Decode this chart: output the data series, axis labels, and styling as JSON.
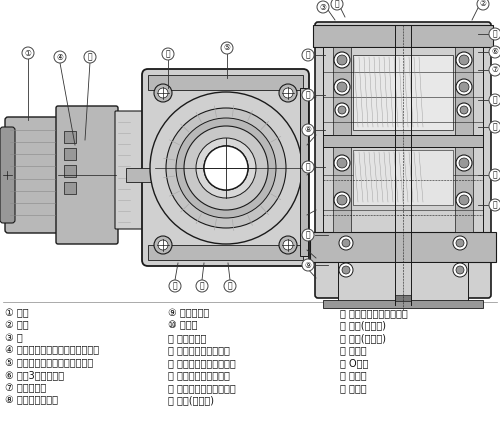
{
  "bg_color": "#ffffff",
  "legend_cols": [
    [
      "① 电机",
      "② 箱体",
      "③ 盖",
      "④ 电机小齿轮（准双曲面小齿轮）",
      "⑤ 第一段齿轮（准双曲面齿轮）",
      "⑥ 带第3轴的小齿轮",
      "⑦ 第二段齿轮",
      "⑧ 第三轴带小齿轮"
    ],
    [
      "⑨ 第三段齿轮",
      "⑩ 输出轴",
      "⑪ 空心轴输出",
      "⑫ 轴承（第二轴盖端）",
      "⑬ 轴承（第二轴箱体端）",
      "⑭ 轴承（第三轴盖端）",
      "⑮ 轴承（第三轴箱体端）",
      "⑯ 轴承(输出轴)"
    ],
    [
      "⑰ 轴承（电机轴负载端）",
      "⑱ 油封(输出端)",
      "⑲ 油封(电机轴)",
      "⑳ 密封盖",
      "㉑ O形环",
      "㉒ 过滤器",
      "㉓ 密封件"
    ]
  ],
  "font_size_legend": 7.0,
  "lc": "#1a1a1a",
  "gray1": "#d0d0d0",
  "gray2": "#b8b8b8",
  "gray3": "#989898",
  "gray4": "#787878",
  "white": "#ffffff"
}
